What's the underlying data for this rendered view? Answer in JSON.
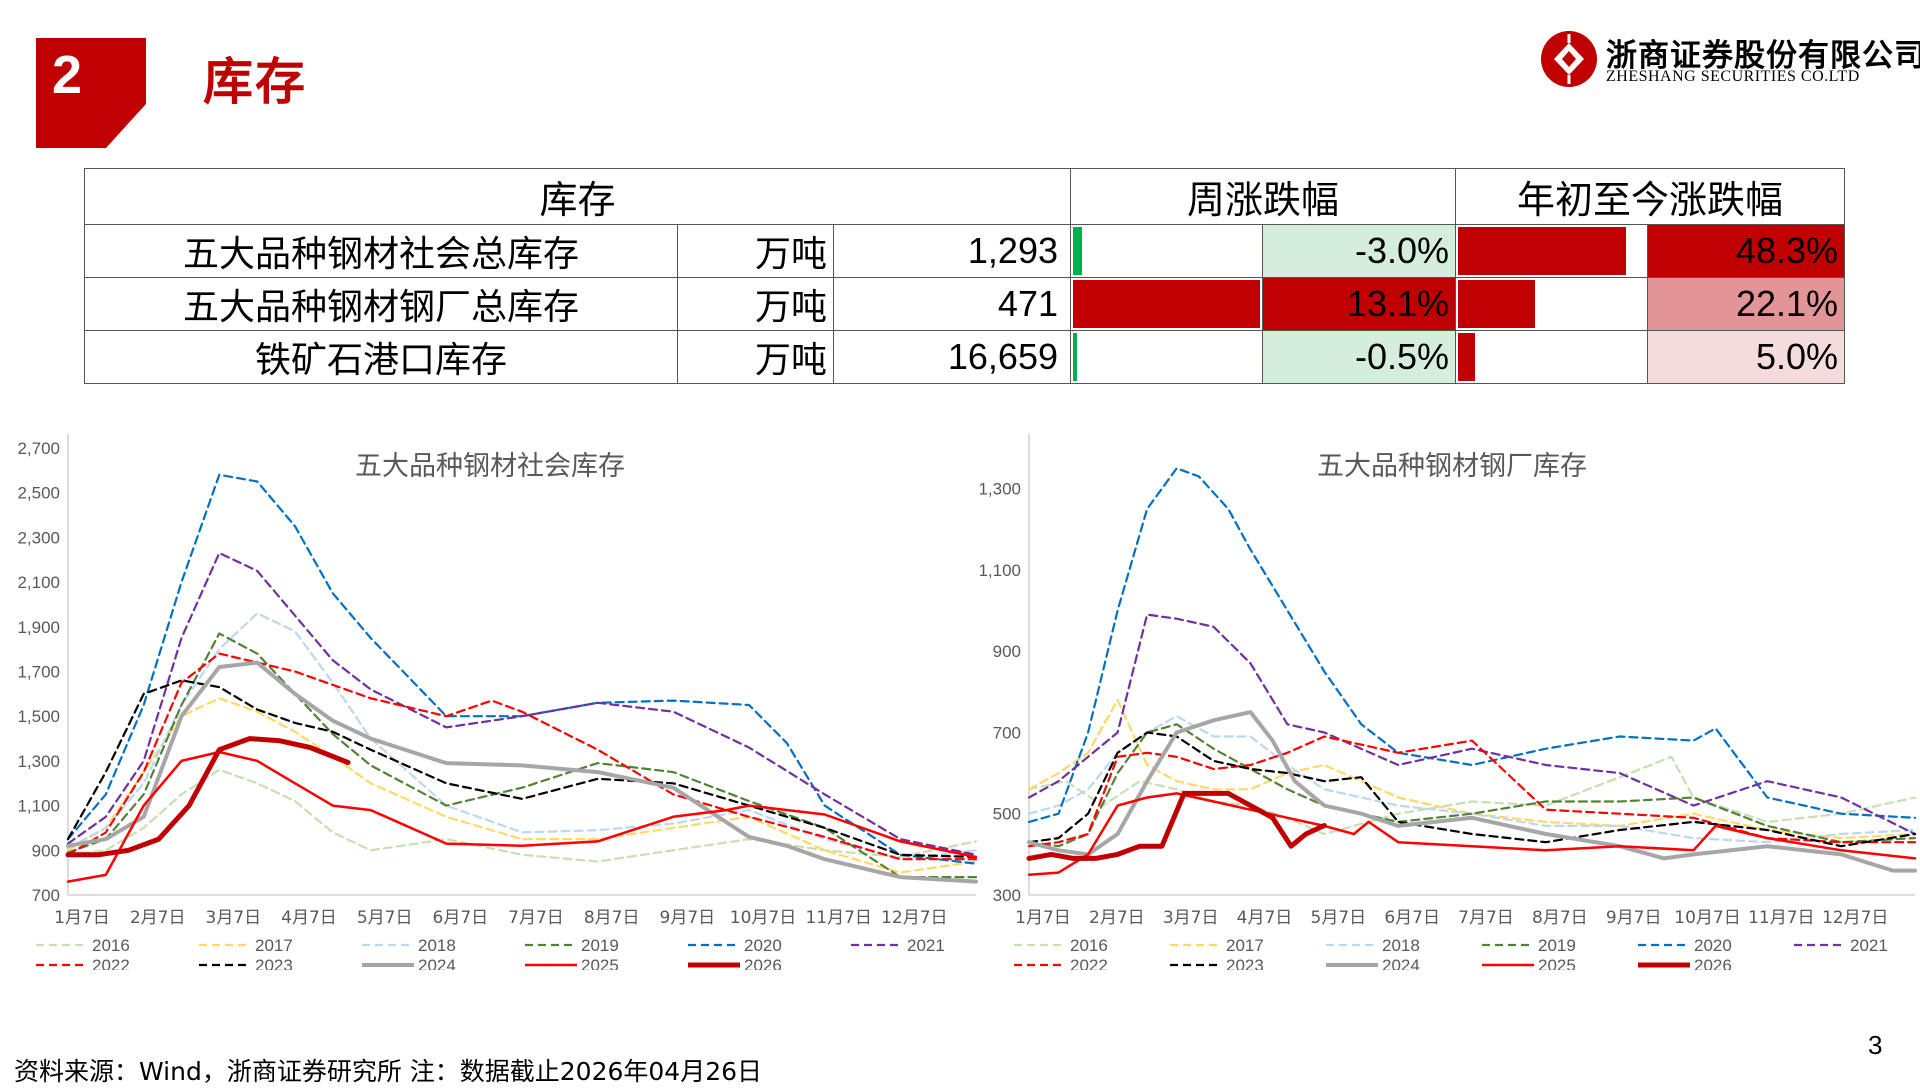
{
  "section": {
    "number": "2",
    "title": "库存"
  },
  "brand": {
    "name_cn": "浙商证券股份有限公司",
    "name_en": "ZHESHANG SECURITIES CO.LTD",
    "color": "#c00000"
  },
  "summary_table": {
    "headers": {
      "inventory": "库存",
      "weekly": "周涨跌幅",
      "ytd": "年初至今涨跌幅"
    },
    "rows": [
      {
        "name": "五大品种钢材社会总库存",
        "unit": "万吨",
        "value": "1,293",
        "weekly": "-3.0%",
        "weekly_num": -3.0,
        "ytd": "48.3%",
        "ytd_num": 48.3
      },
      {
        "name": "五大品种钢材钢厂总库存",
        "unit": "万吨",
        "value": "471",
        "weekly": "13.1%",
        "weekly_num": 13.1,
        "ytd": "22.1%",
        "ytd_num": 22.1
      },
      {
        "name": "铁矿石港口库存",
        "unit": "万吨",
        "value": "16,659",
        "weekly": "-0.5%",
        "weekly_num": -0.5,
        "ytd": "5.0%",
        "ytd_num": 5.0
      }
    ]
  },
  "chart_data": [
    {
      "type": "line",
      "title": "五大品种钢材社会库存",
      "ylim": [
        700,
        2700
      ],
      "yticks": [
        "700",
        "900",
        "1,100",
        "1,300",
        "1,500",
        "1,700",
        "1,900",
        "2,100",
        "2,300",
        "2,500",
        "2,700"
      ],
      "xticks": [
        "1月7日",
        "2月7日",
        "3月7日",
        "4月7日",
        "5月7日",
        "6月7日",
        "7月7日",
        "8月7日",
        "9月7日",
        "10月7日",
        "11月7日",
        "12月7日"
      ],
      "x_months": [
        1,
        13
      ],
      "series": [
        {
          "name": "2016",
          "color": "#c6e0b4",
          "dash": "dash",
          "width": 2.2,
          "x": [
            1,
            1.5,
            2,
            2.5,
            3,
            3.5,
            4,
            4.5,
            5,
            6,
            7,
            8,
            9,
            10,
            11,
            12,
            13
          ],
          "y": [
            880,
            900,
            1000,
            1150,
            1260,
            1200,
            1120,
            980,
            900,
            950,
            880,
            850,
            900,
            950,
            900,
            870,
            940
          ]
        },
        {
          "name": "2017",
          "color": "#ffd966",
          "dash": "dash",
          "width": 2.2,
          "x": [
            1,
            1.5,
            2,
            2.5,
            3,
            3.5,
            4,
            4.5,
            5,
            6,
            7,
            8,
            9,
            10,
            11,
            12,
            13
          ],
          "y": [
            900,
            1000,
            1250,
            1500,
            1580,
            1520,
            1430,
            1320,
            1200,
            1050,
            950,
            950,
            1000,
            1050,
            900,
            800,
            850
          ]
        },
        {
          "name": "2018",
          "color": "#bdd7ee",
          "dash": "dash",
          "width": 2.2,
          "x": [
            1,
            1.5,
            2,
            2.5,
            3,
            3.5,
            4,
            4.5,
            5,
            6,
            7,
            8,
            9,
            10,
            11,
            12,
            13
          ],
          "y": [
            910,
            1000,
            1200,
            1550,
            1800,
            1960,
            1880,
            1650,
            1400,
            1100,
            980,
            990,
            1020,
            1080,
            950,
            860,
            900
          ]
        },
        {
          "name": "2019",
          "color": "#548235",
          "dash": "dash",
          "width": 2.2,
          "x": [
            1,
            1.5,
            2,
            2.5,
            3,
            3.5,
            4,
            4.5,
            5,
            6,
            7,
            8,
            9,
            10,
            11,
            12,
            13
          ],
          "y": [
            890,
            950,
            1150,
            1550,
            1870,
            1780,
            1600,
            1420,
            1280,
            1100,
            1180,
            1290,
            1250,
            1120,
            1000,
            780,
            780
          ]
        },
        {
          "name": "2020",
          "color": "#0070c0",
          "dash": "dash",
          "width": 2.2,
          "x": [
            1,
            1.5,
            2,
            2.5,
            3,
            3.5,
            4,
            4.5,
            5,
            6,
            7,
            8,
            9,
            10,
            10.5,
            11,
            12,
            13
          ],
          "y": [
            950,
            1150,
            1550,
            2100,
            2580,
            2550,
            2350,
            2050,
            1850,
            1500,
            1500,
            1560,
            1570,
            1550,
            1380,
            1100,
            880,
            840
          ]
        },
        {
          "name": "2021",
          "color": "#7030a0",
          "dash": "dash",
          "width": 2.2,
          "x": [
            1,
            1.5,
            2,
            2.5,
            3,
            3.5,
            4,
            4.5,
            5,
            6,
            7,
            8,
            9,
            10,
            11,
            12,
            13
          ],
          "y": [
            930,
            1050,
            1300,
            1850,
            2230,
            2150,
            1950,
            1750,
            1620,
            1450,
            1500,
            1560,
            1520,
            1360,
            1150,
            950,
            880
          ]
        },
        {
          "name": "2022",
          "color": "#ff0000",
          "dash": "dash",
          "width": 2.2,
          "x": [
            1,
            1.5,
            2,
            2.5,
            3,
            3.5,
            4,
            4.5,
            5,
            6,
            6.6,
            7,
            8,
            9,
            10,
            11,
            12,
            13
          ],
          "y": [
            880,
            980,
            1250,
            1650,
            1780,
            1740,
            1700,
            1640,
            1580,
            1500,
            1570,
            1520,
            1350,
            1150,
            1050,
            960,
            860,
            860
          ]
        },
        {
          "name": "2023",
          "color": "#000000",
          "dash": "dash",
          "width": 2.2,
          "x": [
            1,
            1.5,
            2,
            2.5,
            3,
            3.5,
            4,
            4.5,
            5,
            6,
            7,
            8,
            9,
            10,
            11,
            12,
            13
          ],
          "y": [
            950,
            1250,
            1600,
            1660,
            1630,
            1530,
            1470,
            1430,
            1350,
            1200,
            1130,
            1220,
            1200,
            1100,
            1000,
            880,
            870
          ]
        },
        {
          "name": "2024",
          "color": "#a6a6a6",
          "dash": "solid",
          "width": 4,
          "x": [
            1,
            1.5,
            2,
            2.5,
            3,
            3.5,
            4,
            4.5,
            5,
            6,
            7,
            8,
            9,
            10,
            10.5,
            11,
            12,
            13
          ],
          "y": [
            920,
            950,
            1050,
            1500,
            1720,
            1740,
            1600,
            1480,
            1400,
            1290,
            1280,
            1250,
            1180,
            960,
            920,
            860,
            780,
            760
          ]
        },
        {
          "name": "2025",
          "color": "#ff0000",
          "dash": "solid",
          "width": 2.5,
          "x": [
            1,
            1.5,
            2,
            2.5,
            3,
            3.5,
            4,
            4.5,
            5,
            6,
            7,
            8,
            9,
            9.7,
            10,
            11,
            12,
            13
          ],
          "y": [
            760,
            790,
            1100,
            1300,
            1340,
            1300,
            1200,
            1100,
            1080,
            930,
            920,
            940,
            1050,
            1080,
            1100,
            1060,
            940,
            870
          ]
        },
        {
          "name": "2026",
          "color": "#c00000",
          "dash": "solid",
          "width": 5,
          "x": [
            1,
            1.4,
            1.8,
            2.2,
            2.6,
            3.0,
            3.4,
            3.8,
            4.2,
            4.7
          ],
          "y": [
            880,
            880,
            900,
            950,
            1100,
            1350,
            1400,
            1390,
            1360,
            1293
          ]
        }
      ]
    },
    {
      "type": "line",
      "title": "五大品种钢材钢厂库存",
      "ylim": [
        300,
        1400
      ],
      "yticks": [
        "300",
        "500",
        "700",
        "900",
        "1,100",
        "1,300"
      ],
      "xticks": [
        "1月7日",
        "2月7日",
        "3月7日",
        "4月7日",
        "5月7日",
        "6月7日",
        "7月7日",
        "8月7日",
        "9月7日",
        "10月7日",
        "11月7日",
        "12月7日"
      ],
      "x_months": [
        1,
        13
      ],
      "series": [
        {
          "name": "2016",
          "color": "#c6e0b4",
          "dash": "dash",
          "width": 2.2,
          "x": [
            1,
            1.5,
            2,
            2.5,
            3,
            3.5,
            4,
            4.5,
            5,
            6,
            7,
            8,
            9,
            9.7,
            10,
            11,
            12,
            13
          ],
          "y": [
            560,
            580,
            520,
            580,
            560,
            530,
            520,
            490,
            450,
            500,
            530,
            520,
            590,
            640,
            540,
            480,
            500,
            540
          ]
        },
        {
          "name": "2017",
          "color": "#ffd966",
          "dash": "dash",
          "width": 2.2,
          "x": [
            1,
            1.4,
            1.8,
            2.2,
            2.6,
            3,
            3.5,
            4,
            4.5,
            5,
            6,
            7,
            8,
            9,
            10,
            11,
            12,
            13
          ],
          "y": [
            560,
            600,
            650,
            780,
            620,
            580,
            560,
            560,
            600,
            620,
            540,
            500,
            480,
            470,
            500,
            460,
            440,
            450
          ]
        },
        {
          "name": "2018",
          "color": "#bdd7ee",
          "dash": "dash",
          "width": 2.2,
          "x": [
            1,
            1.4,
            1.8,
            2.2,
            2.6,
            3,
            3.5,
            4,
            4.5,
            5,
            6,
            7,
            8,
            9,
            10,
            11,
            12,
            13
          ],
          "y": [
            500,
            520,
            560,
            650,
            700,
            740,
            690,
            690,
            620,
            560,
            520,
            500,
            470,
            470,
            440,
            430,
            450,
            460
          ]
        },
        {
          "name": "2019",
          "color": "#548235",
          "dash": "dash",
          "width": 2.2,
          "x": [
            1,
            1.4,
            1.8,
            2.2,
            2.6,
            3,
            3.5,
            4,
            4.5,
            5,
            6,
            7,
            8,
            9,
            10,
            11,
            12,
            13
          ],
          "y": [
            430,
            420,
            450,
            600,
            700,
            720,
            660,
            610,
            560,
            520,
            480,
            500,
            530,
            530,
            540,
            470,
            430,
            440
          ]
        },
        {
          "name": "2020",
          "color": "#0070c0",
          "dash": "dash",
          "width": 2.2,
          "x": [
            1,
            1.4,
            1.8,
            2.2,
            2.6,
            3,
            3.3,
            3.7,
            4,
            4.5,
            5,
            5.5,
            6,
            7,
            8,
            9,
            10,
            10.3,
            11,
            12,
            13
          ],
          "y": [
            480,
            500,
            700,
            1000,
            1250,
            1350,
            1330,
            1250,
            1150,
            1000,
            850,
            720,
            650,
            620,
            660,
            690,
            680,
            710,
            540,
            500,
            490
          ]
        },
        {
          "name": "2021",
          "color": "#7030a0",
          "dash": "dash",
          "width": 2.2,
          "x": [
            1,
            1.4,
            1.8,
            2.2,
            2.6,
            3,
            3.5,
            4,
            4.5,
            5,
            6,
            7,
            8,
            9,
            10,
            11,
            12,
            13
          ],
          "y": [
            540,
            580,
            640,
            700,
            990,
            980,
            960,
            870,
            720,
            700,
            620,
            660,
            620,
            600,
            520,
            580,
            540,
            450
          ]
        },
        {
          "name": "2022",
          "color": "#ff0000",
          "dash": "dash",
          "width": 2.2,
          "x": [
            1,
            1.4,
            1.8,
            2.2,
            2.6,
            3,
            3.5,
            4,
            4.5,
            5,
            6,
            7,
            8,
            9,
            10,
            11,
            12,
            13
          ],
          "y": [
            420,
            430,
            450,
            640,
            650,
            640,
            610,
            620,
            650,
            690,
            650,
            680,
            510,
            500,
            490,
            440,
            430,
            430
          ]
        },
        {
          "name": "2023",
          "color": "#000000",
          "dash": "dash",
          "width": 2.2,
          "x": [
            1,
            1.4,
            1.8,
            2.2,
            2.6,
            3,
            3.5,
            4,
            4.5,
            5,
            5.5,
            6,
            7,
            8,
            9,
            10,
            11,
            12,
            13
          ],
          "y": [
            430,
            440,
            500,
            650,
            700,
            690,
            630,
            610,
            600,
            580,
            590,
            480,
            450,
            430,
            460,
            480,
            460,
            420,
            450
          ]
        },
        {
          "name": "2024",
          "color": "#a6a6a6",
          "dash": "solid",
          "width": 4,
          "x": [
            1,
            1.4,
            1.8,
            2.2,
            2.6,
            3,
            3.5,
            4,
            4.3,
            4.6,
            5,
            5.5,
            6,
            7,
            8,
            9,
            9.6,
            10,
            11,
            12,
            12.7,
            13
          ],
          "y": [
            430,
            410,
            400,
            450,
            580,
            700,
            730,
            750,
            680,
            580,
            520,
            500,
            470,
            490,
            450,
            420,
            390,
            400,
            420,
            400,
            360,
            360
          ]
        },
        {
          "name": "2025",
          "color": "#ff0000",
          "dash": "solid",
          "width": 2.5,
          "x": [
            1,
            1.4,
            1.8,
            2.2,
            2.6,
            3,
            3.5,
            4,
            4.5,
            5,
            5.4,
            5.6,
            6,
            7,
            8,
            9,
            10,
            10.3,
            11,
            12,
            13
          ],
          "y": [
            350,
            355,
            400,
            520,
            540,
            550,
            530,
            510,
            490,
            470,
            450,
            480,
            430,
            420,
            410,
            420,
            410,
            470,
            440,
            410,
            390
          ]
        },
        {
          "name": "2026",
          "color": "#c00000",
          "dash": "solid",
          "width": 5,
          "x": [
            1,
            1.3,
            1.6,
            1.9,
            2.2,
            2.5,
            2.8,
            3.1,
            3.4,
            3.7,
            4.0,
            4.3,
            4.55,
            4.75,
            5.0
          ],
          "y": [
            390,
            400,
            390,
            390,
            400,
            420,
            420,
            550,
            550,
            550,
            520,
            490,
            420,
            450,
            471
          ]
        }
      ]
    }
  ],
  "footer": {
    "source": "资料来源：Wind，浙商证券研究所    注：数据截止2026年04月26日",
    "page": "3"
  }
}
